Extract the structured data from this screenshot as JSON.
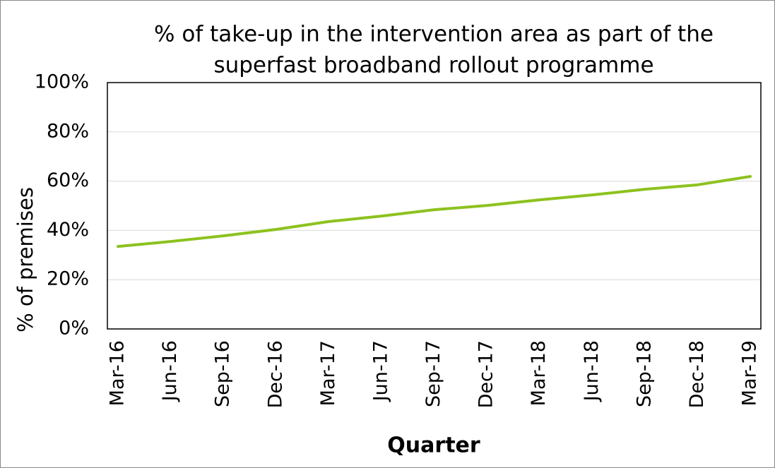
{
  "chart_data": {
    "type": "line",
    "title": [
      "% of take-up in the intervention area as part of the",
      "superfast broadband rollout programme"
    ],
    "x_label": "Quarter",
    "y_label": "% of premises",
    "categories": [
      "Mar-16",
      "Jun-16",
      "Sep-16",
      "Dec-16",
      "Mar-17",
      "Jun-17",
      "Sep-17",
      "Dec-17",
      "Mar-18",
      "Jun-18",
      "Sep-18",
      "Dec-18",
      "Mar-19"
    ],
    "values": [
      33.5,
      35.5,
      37.8,
      40.4,
      43.6,
      45.8,
      48.4,
      50.1,
      52.4,
      54.4,
      56.7,
      58.5,
      61.9
    ],
    "color": "#8dc21f",
    "ylim": [
      0,
      100
    ],
    "yticks": [
      {
        "value": 0,
        "label": "0%"
      },
      {
        "value": 20,
        "label": "20%"
      },
      {
        "value": 40,
        "label": "40%"
      },
      {
        "value": 60,
        "label": "60%"
      },
      {
        "value": 80,
        "label": "80%"
      },
      {
        "value": 100,
        "label": "100%"
      }
    ],
    "grid": true
  }
}
